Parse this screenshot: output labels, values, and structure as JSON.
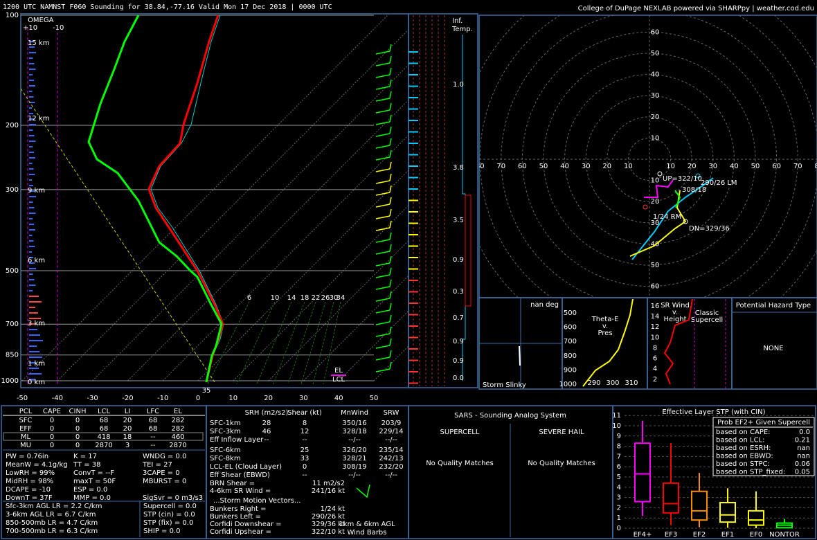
{
  "header": {
    "title": "1200 UTC NAMNST F060 Sounding for 38.84,-77.16 Valid  Mon 17 Dec 2018 | 0000 UTC",
    "credit": "College of DuPage NEXLAB powered via SHARPpy | weather.cod.edu"
  },
  "skewt": {
    "pressure_ticks": [
      100,
      200,
      300,
      500,
      700,
      850,
      1000
    ],
    "temp_ticks": [
      -50,
      -40,
      -30,
      -20,
      -10,
      0,
      10,
      20,
      30,
      40,
      50
    ],
    "height_labels": [
      "15 km",
      "12 km",
      "9 km",
      "6 km",
      "3 km",
      "1 km",
      "0 km"
    ],
    "omega_title": "OMEGA",
    "omega_ticks": [
      "+10",
      "-10"
    ],
    "mixing_ratio_labels": [
      "6",
      "10",
      "14",
      "18",
      "22",
      "26",
      "30",
      "34"
    ],
    "el": "EL",
    "lcl": "LCL",
    "surface_temp": 35
  },
  "inflow": {
    "title": "Inf.",
    "subtitle": "Temp.",
    "labels": [
      "1.0",
      "3.8",
      "3.5",
      "0.9",
      "0.3",
      "0.7",
      "0.9",
      "0.9",
      "0.0"
    ]
  },
  "hodograph": {
    "xticks": [
      {
        "value": -80,
        "label": "80"
      },
      {
        "value": -70,
        "label": "70"
      },
      {
        "value": -60,
        "label": "60"
      },
      {
        "value": -50,
        "label": "50"
      },
      {
        "value": -40,
        "label": "40"
      },
      {
        "value": -30,
        "label": "30"
      },
      {
        "value": -20,
        "label": "20"
      },
      {
        "value": -10,
        "label": "10"
      },
      10,
      20,
      30,
      40,
      50,
      60,
      70,
      80
    ],
    "yticks": [
      60,
      50,
      40,
      30,
      20,
      10,
      {
        "value": -10,
        "label": "10"
      },
      {
        "value": -20,
        "label": "20"
      },
      {
        "value": -30,
        "label": "30"
      },
      {
        "value": -40,
        "label": "40"
      },
      {
        "value": -50,
        "label": "50"
      },
      {
        "value": -60,
        "label": "60"
      }
    ],
    "motion_labels": [
      "UP=322/10",
      "290/26 LM",
      "308/18",
      "1/24 RM",
      "DN=329/36"
    ]
  },
  "slinky": {
    "angle": "nan deg",
    "title": "Storm Slinky"
  },
  "theta_e": {
    "title": [
      "Theta-E",
      "v.",
      "Pres"
    ],
    "pressure_ticks": [
      500,
      600,
      700,
      800,
      900,
      1000
    ],
    "theta_ticks": [
      290,
      300,
      310
    ]
  },
  "sr_wind": {
    "title": [
      "SR Wind",
      "v.",
      "Height"
    ],
    "height_ticks": [
      2,
      4,
      6,
      8,
      10,
      12,
      14,
      16
    ],
    "note": [
      "Classic",
      "Supercell"
    ]
  },
  "hazard": {
    "title": "Potential Hazard Type",
    "value": "NONE"
  },
  "thermo": {
    "columns": [
      "PCL",
      "CAPE",
      "CINH",
      "LCL",
      "LI",
      "LFC",
      "EL"
    ],
    "rows": [
      [
        "SFC",
        "0",
        "0",
        "68",
        "20",
        "68",
        "282"
      ],
      [
        "EFF",
        "0",
        "0",
        "68",
        "20",
        "68",
        "282"
      ],
      [
        "ML",
        "0",
        "0",
        "418",
        "18",
        "--",
        "460"
      ],
      [
        "MU",
        "0",
        "0",
        "2870",
        "3",
        "--",
        "2870"
      ]
    ],
    "indices": [
      [
        "PW = 0.76in",
        "K = 17",
        "WNDG = 0.0"
      ],
      [
        "MeanW = 4.1g/kg",
        "TT = 38",
        "TEI = 27"
      ],
      [
        "LowRH = 99%",
        "ConvT = --F",
        "3CAPE = 0"
      ],
      [
        "MidRH = 98%",
        "maxT = 50F",
        "MBURST = 0"
      ],
      [
        "DCAPE = -10",
        "ESP = 0.0",
        ""
      ],
      [
        "DownT = 37F",
        "MMP = 0.0",
        "SigSvr = 0 m3/s3"
      ]
    ],
    "lapse_rates": [
      "Sfc-3km AGL LR = 2.2 C/km",
      "3-6km AGL LR = 6.7 C/km",
      "850-500mb LR = 4.7 C/km",
      "700-500mb LR = 6.3 C/km"
    ],
    "composites": [
      "Supercell = 0.0",
      "STP (cin) = 0.0",
      "STP (fix) = 0.0",
      "SHIP = 0.0"
    ]
  },
  "kinematics": {
    "columns": [
      "SRH (m2/s2)",
      "Shear (kt)",
      "MnWind",
      "SRW"
    ],
    "rows": [
      [
        "SFC-1km",
        "28",
        "8",
        "350/16",
        "203/9"
      ],
      [
        "SFC-3km",
        "46",
        "12",
        "328/18",
        "229/14"
      ],
      [
        "Eff Inflow Layer",
        "--",
        "--",
        "--/--",
        "--/--"
      ],
      [
        "SFC-6km",
        "",
        "25",
        "326/20",
        "235/14"
      ],
      [
        "SFC-8km",
        "",
        "33",
        "328/21",
        "242/13"
      ],
      [
        "LCL-EL (Cloud Layer)",
        "",
        "0",
        "308/19",
        "232/20"
      ],
      [
        "Eff Shear (EBWD)",
        "",
        "--",
        "--/--",
        "--/--"
      ]
    ],
    "extras": [
      [
        "BRN Shear =",
        "11 m2/s2"
      ],
      [
        "4-6km SR Wind =",
        "241/16 kt"
      ]
    ],
    "motion_title": "...Storm Motion Vectors...",
    "motions": [
      [
        "Bunkers Right =",
        "1/24 kt"
      ],
      [
        "Bunkers Left =",
        "290/26 kt"
      ],
      [
        "Corfidi Downshear =",
        "329/36 kt"
      ],
      [
        "Corfidi Upshear =",
        "322/10 kt"
      ]
    ],
    "barb_note": [
      "1km & 6km AGL",
      "Wind Barbs"
    ]
  },
  "sars": {
    "title": "SARS - Sounding Analog System",
    "supercell": "SUPERCELL",
    "hail": "SEVERE HAIL",
    "supercell_result": "No Quality Matches",
    "hail_result": "No Quality Matches"
  },
  "stp": {
    "title": "Effective Layer STP (with CIN)",
    "yticks": [
      0,
      1,
      2,
      3,
      4,
      5,
      6,
      7,
      8,
      9,
      10,
      11
    ],
    "categories": [
      "EF4+",
      "EF3",
      "EF2",
      "EF1",
      "EF0",
      "NONTOR"
    ],
    "colors": [
      "#ff00ff",
      "#ff0000",
      "#ff8c00",
      "#ffff00",
      "#ffff00",
      "#00ff00"
    ],
    "low": [
      1.2,
      0.3,
      0.1,
      0.05,
      0,
      0
    ],
    "q1": [
      2.6,
      1.5,
      0.8,
      0.6,
      0.3,
      0.05
    ],
    "median": [
      5.3,
      2.4,
      1.7,
      1.3,
      0.8,
      0.3
    ],
    "q3": [
      8.3,
      4.4,
      3.6,
      2.5,
      1.7,
      0.5
    ],
    "high": [
      10.5,
      8.3,
      5.4,
      3.9,
      3.6,
      0.9
    ],
    "prob": {
      "title": "Prob EF2+ Given Supercell",
      "rows": [
        [
          "based on CAPE:",
          "0.0"
        ],
        [
          "based on LCL:",
          "0.21"
        ],
        [
          "based on ESRH:",
          "nan"
        ],
        [
          "based on EBWD:",
          "nan"
        ],
        [
          "based on STPC:",
          "0.06"
        ],
        [
          "based on STP_fixed:",
          "0.05"
        ]
      ]
    }
  }
}
